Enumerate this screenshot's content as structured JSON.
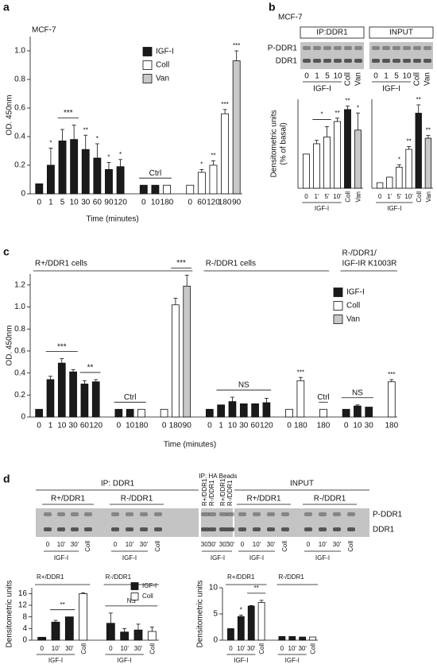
{
  "panels": [
    "a",
    "b",
    "c",
    "d"
  ],
  "blots": {
    "b": {
      "cell": "MCF-7",
      "ip": "IP:DDR1",
      "input": "INPUT",
      "rows": [
        "P-DDR1",
        "DDR1"
      ],
      "lanes": [
        "0",
        "1",
        "5",
        "10",
        "Coll",
        "Van"
      ],
      "group": "IGF-I"
    },
    "d": {
      "ip": "IP: DDR1",
      "cells": [
        "R+/DDR1",
        "R-/DDR1"
      ],
      "lanes": [
        "0",
        "10'",
        "30'",
        "Coll"
      ],
      "group": "IGF-I",
      "ha": "IP: HA",
      "beads": "Beads",
      "ha_lanes": [
        "R+/DDR1",
        "R-/DDR1",
        "R+/DDR1",
        "R-/DDR1"
      ],
      "ha_time": "30'",
      "input": "INPUT",
      "rows": [
        "P-DDR1",
        "DDR1"
      ]
    }
  },
  "chart_data": [
    {
      "type": "bar",
      "title": "MCF-7",
      "ylabel": "OD. 450nm",
      "xlabel": "Time (minutes)",
      "categories": [
        "0",
        "1",
        "5",
        "10",
        "30",
        "60",
        "90",
        "120",
        null,
        "0",
        "10",
        "180",
        null,
        "0",
        "60",
        "120",
        "180",
        "90"
      ],
      "series": [
        {
          "name": "IGF-I",
          "color": "#1a1a1a",
          "values": [
            0.07,
            0.2,
            0.37,
            0.38,
            0.31,
            0.25,
            0.17,
            0.19,
            null,
            0.06,
            0.06,
            null,
            null,
            null,
            null,
            null,
            null,
            null
          ],
          "errors": [
            null,
            0.12,
            0.08,
            0.1,
            0.1,
            0.1,
            0.05,
            0.05,
            null,
            null,
            null,
            null,
            null,
            null,
            null,
            null,
            null,
            null
          ]
        },
        {
          "name": "Coll",
          "color": "#ffffff",
          "values": [
            null,
            null,
            null,
            null,
            null,
            null,
            null,
            null,
            null,
            null,
            null,
            0.06,
            null,
            0.06,
            0.15,
            0.2,
            0.56,
            null
          ],
          "errors": [
            null,
            null,
            null,
            null,
            null,
            null,
            null,
            null,
            null,
            null,
            null,
            null,
            null,
            null,
            0.02,
            0.03,
            0.03,
            null
          ]
        },
        {
          "name": "Van",
          "color": "#c8c8c8",
          "values": [
            null,
            null,
            null,
            null,
            null,
            null,
            null,
            null,
            null,
            null,
            null,
            null,
            null,
            null,
            null,
            null,
            null,
            0.93
          ],
          "errors": [
            null,
            null,
            null,
            null,
            null,
            null,
            null,
            null,
            null,
            null,
            null,
            null,
            null,
            null,
            null,
            null,
            null,
            0.07
          ]
        }
      ],
      "sig": [
        null,
        "*",
        null,
        null,
        "**",
        "*",
        "*",
        "*",
        null,
        null,
        null,
        null,
        null,
        null,
        "*",
        "**",
        "***",
        "***"
      ],
      "brackets": [
        {
          "from": 2,
          "to": 3,
          "label": "***"
        },
        {
          "from": 9,
          "to": 11,
          "label": "Ctrl"
        }
      ],
      "ylim": [
        0,
        1.1
      ],
      "yticks": [
        0,
        0.2,
        0.4,
        0.6,
        0.8,
        {
          "value": 1,
          "label": "1.0"
        }
      ]
    },
    {
      "type": "bar",
      "ylabel": [
        "Densitometric units",
        "(% of basal)"
      ],
      "categories": [
        "0",
        "1'",
        "5'",
        "10'",
        "Coll",
        "Van"
      ],
      "series": [
        {
          "color": "#ffffff",
          "values": [
            100,
            130,
            150,
            195,
            null,
            null
          ],
          "errors": [
            null,
            10,
            30,
            10,
            null,
            null
          ]
        },
        {
          "color": "#1a1a1a",
          "values": [
            null,
            null,
            null,
            null,
            230,
            null
          ],
          "errors": [
            null,
            null,
            null,
            null,
            10,
            null
          ]
        },
        {
          "color": "#c8c8c8",
          "values": [
            null,
            null,
            null,
            null,
            null,
            170
          ],
          "errors": [
            null,
            null,
            null,
            null,
            null,
            50
          ]
        }
      ],
      "sig": [
        null,
        null,
        null,
        "**",
        "**",
        "*"
      ],
      "brackets": [
        {
          "from": 1,
          "to": 2,
          "label": "*"
        }
      ],
      "xgroups": [
        {
          "from": 0,
          "to": 3,
          "label": "IGF-I"
        }
      ],
      "ylim": [
        0,
        260
      ]
    },
    {
      "type": "bar",
      "categories": [
        "0",
        "1'",
        "5'",
        "10'",
        "Coll",
        "Van"
      ],
      "series": [
        {
          "color": "#ffffff",
          "values": [
            100,
            200,
            380,
            700,
            null,
            null
          ],
          "errors": [
            null,
            null,
            40,
            50,
            null,
            null
          ]
        },
        {
          "color": "#1a1a1a",
          "values": [
            null,
            null,
            null,
            null,
            1350,
            null
          ],
          "errors": [
            null,
            null,
            null,
            null,
            150,
            null
          ]
        },
        {
          "color": "#c8c8c8",
          "values": [
            null,
            null,
            null,
            null,
            null,
            900
          ],
          "errors": [
            null,
            null,
            null,
            null,
            null,
            50
          ]
        }
      ],
      "sig": [
        null,
        null,
        "*",
        "**",
        "**",
        "**"
      ],
      "xgroups": [
        {
          "from": 0,
          "to": 3,
          "label": "IGF-I"
        }
      ],
      "ylim": [
        0,
        1600
      ]
    },
    {
      "type": "bar",
      "ylabel": "OD. 450nm",
      "xlabel": "Time (minutes)",
      "categories": [
        "0",
        "1",
        "10",
        "30",
        "60",
        "120",
        null,
        "0",
        "10",
        "180",
        null,
        "0",
        "180",
        "90",
        null,
        "0",
        "1",
        "10",
        "30",
        "60",
        "120",
        null,
        "0",
        "180",
        null,
        "180",
        null,
        "0",
        "10",
        "30",
        null,
        "180"
      ],
      "series": [
        {
          "name": "IGF-I",
          "color": "#1a1a1a",
          "values": [
            0.07,
            0.34,
            0.49,
            0.41,
            0.3,
            0.32,
            null,
            0.07,
            0.07,
            null,
            null,
            null,
            null,
            null,
            null,
            0.07,
            0.11,
            0.14,
            0.12,
            0.12,
            0.13,
            null,
            null,
            null,
            null,
            null,
            null,
            0.07,
            0.1,
            0.09,
            null,
            null
          ],
          "errors": [
            null,
            0.03,
            0.04,
            0.02,
            0.03,
            0.02,
            null,
            null,
            null,
            null,
            null,
            null,
            null,
            null,
            null,
            null,
            null,
            0.04,
            null,
            null,
            0.04,
            null,
            null,
            null,
            null,
            null,
            null,
            null,
            0.01,
            null,
            null,
            null
          ]
        },
        {
          "name": "Coll",
          "color": "#ffffff",
          "values": [
            null,
            null,
            null,
            null,
            null,
            null,
            null,
            null,
            null,
            0.07,
            null,
            0.07,
            1.02,
            null,
            null,
            null,
            null,
            null,
            null,
            null,
            null,
            null,
            0.07,
            0.33,
            null,
            0.07,
            null,
            null,
            null,
            null,
            null,
            0.32
          ],
          "errors": [
            null,
            null,
            null,
            null,
            null,
            null,
            null,
            null,
            null,
            null,
            null,
            null,
            0.06,
            null,
            null,
            null,
            null,
            null,
            null,
            null,
            null,
            null,
            null,
            0.03,
            null,
            null,
            null,
            null,
            null,
            null,
            null,
            0.02
          ]
        },
        {
          "name": "Van",
          "color": "#c8c8c8",
          "values": [
            null,
            null,
            null,
            null,
            null,
            null,
            null,
            null,
            null,
            null,
            null,
            null,
            null,
            1.19,
            null,
            null,
            null,
            null,
            null,
            null,
            null,
            null,
            null,
            null,
            null,
            null,
            null,
            null,
            null,
            null,
            null,
            null
          ],
          "errors": [
            null,
            null,
            null,
            null,
            null,
            null,
            null,
            null,
            null,
            null,
            null,
            null,
            null,
            0.1,
            null,
            null,
            null,
            null,
            null,
            null,
            null,
            null,
            null,
            null,
            null,
            null,
            null,
            null,
            null,
            null,
            null,
            null
          ]
        }
      ],
      "sig": [
        null,
        null,
        null,
        null,
        null,
        null,
        null,
        null,
        null,
        null,
        null,
        null,
        null,
        null,
        null,
        null,
        null,
        null,
        null,
        null,
        null,
        null,
        null,
        "***",
        null,
        null,
        null,
        null,
        null,
        null,
        null,
        "***"
      ],
      "brackets": [
        {
          "from": 1,
          "to": 3,
          "label": "***"
        },
        {
          "from": 4,
          "to": 5,
          "label": "**"
        },
        {
          "from": 7,
          "to": 9,
          "label": "Ctrl"
        },
        {
          "from": 12,
          "to": 13,
          "label": "***"
        },
        {
          "from": 16,
          "to": 20,
          "label": "NS"
        },
        {
          "from": 25,
          "to": 25,
          "label": "Ctrl"
        },
        {
          "from": 27,
          "to": 29,
          "label": "NS"
        }
      ],
      "headers": [
        {
          "from": 0,
          "to": 13,
          "label": "R+/DDR1 cells"
        },
        {
          "from": 15,
          "to": 25,
          "label": "R-/DDR1 cells"
        },
        {
          "from": 27,
          "to": 31,
          "label": [
            "R-/DDR1/",
            "IGF-IR K1003R"
          ]
        }
      ],
      "ylim": [
        0,
        1.3
      ],
      "yticks": [
        0,
        0.2,
        0.4,
        0.6,
        0.8,
        {
          "value": 1,
          "label": "1.0"
        },
        1.2
      ]
    },
    {
      "type": "bar",
      "ylabel": "Densitometric units",
      "categories": [
        "0",
        "10'",
        "30'",
        "Coll",
        null,
        "0",
        "10'",
        "30'",
        "Coll"
      ],
      "series": [
        {
          "name": "IGF-I",
          "color": "#1a1a1a",
          "values": [
            1,
            6.2,
            8,
            null,
            null,
            5.8,
            2.8,
            3.5,
            null
          ],
          "errors": [
            null,
            0.6,
            null,
            null,
            null,
            3.5,
            1.2,
            2,
            null
          ]
        },
        {
          "name": "Coll",
          "color": "#ffffff",
          "values": [
            null,
            null,
            null,
            16,
            null,
            null,
            null,
            null,
            3
          ],
          "errors": [
            null,
            null,
            null,
            0.3,
            null,
            null,
            null,
            null,
            1.5
          ]
        }
      ],
      "brackets": [
        {
          "from": 1,
          "to": 2,
          "label": "**"
        },
        {
          "from": 5,
          "to": 8,
          "label": "NS"
        }
      ],
      "headers": [
        {
          "from": 0,
          "to": 3,
          "label": "R+/DDR1"
        },
        {
          "from": 5,
          "to": 8,
          "label": "R-/DDR1"
        }
      ],
      "xgroups": [
        {
          "from": 0,
          "to": 2,
          "label": "IGF-I"
        },
        {
          "from": 5,
          "to": 7,
          "label": "IGF-I"
        }
      ],
      "ylim": [
        0,
        18
      ],
      "yticks": [
        0,
        4,
        8,
        12,
        16
      ]
    },
    {
      "type": "bar",
      "ylabel": "Densitometric units",
      "categories": [
        "0",
        "10'",
        "30'",
        "Coll",
        null,
        "0",
        "10'",
        "30'",
        "Coll"
      ],
      "series": [
        {
          "color": "#1a1a1a",
          "values": [
            2.2,
            4.5,
            6.5,
            null,
            null,
            0.7,
            0.7,
            0.6,
            null
          ],
          "errors": [
            null,
            0.3,
            0.1,
            null,
            null,
            null,
            null,
            null,
            null
          ]
        },
        {
          "color": "#ffffff",
          "values": [
            null,
            null,
            null,
            7.2,
            null,
            null,
            null,
            null,
            0.6
          ],
          "errors": [
            null,
            null,
            null,
            0.4,
            null,
            null,
            null,
            null,
            null
          ]
        }
      ],
      "sig": [
        null,
        "*",
        null,
        null,
        null,
        null,
        null,
        null,
        null
      ],
      "brackets": [
        {
          "from": 2,
          "to": 3,
          "label": "**"
        }
      ],
      "headers": [
        {
          "from": 0,
          "to": 3,
          "label": "R+/DDR1"
        },
        {
          "from": 5,
          "to": 8,
          "label": "R-/DDR1"
        }
      ],
      "xgroups": [
        {
          "from": 0,
          "to": 2,
          "label": "IGF-I"
        },
        {
          "from": 5,
          "to": 7,
          "label": "IGF-I"
        }
      ],
      "ylim": [
        0,
        10
      ],
      "yticks": [
        0,
        5,
        10
      ]
    }
  ]
}
